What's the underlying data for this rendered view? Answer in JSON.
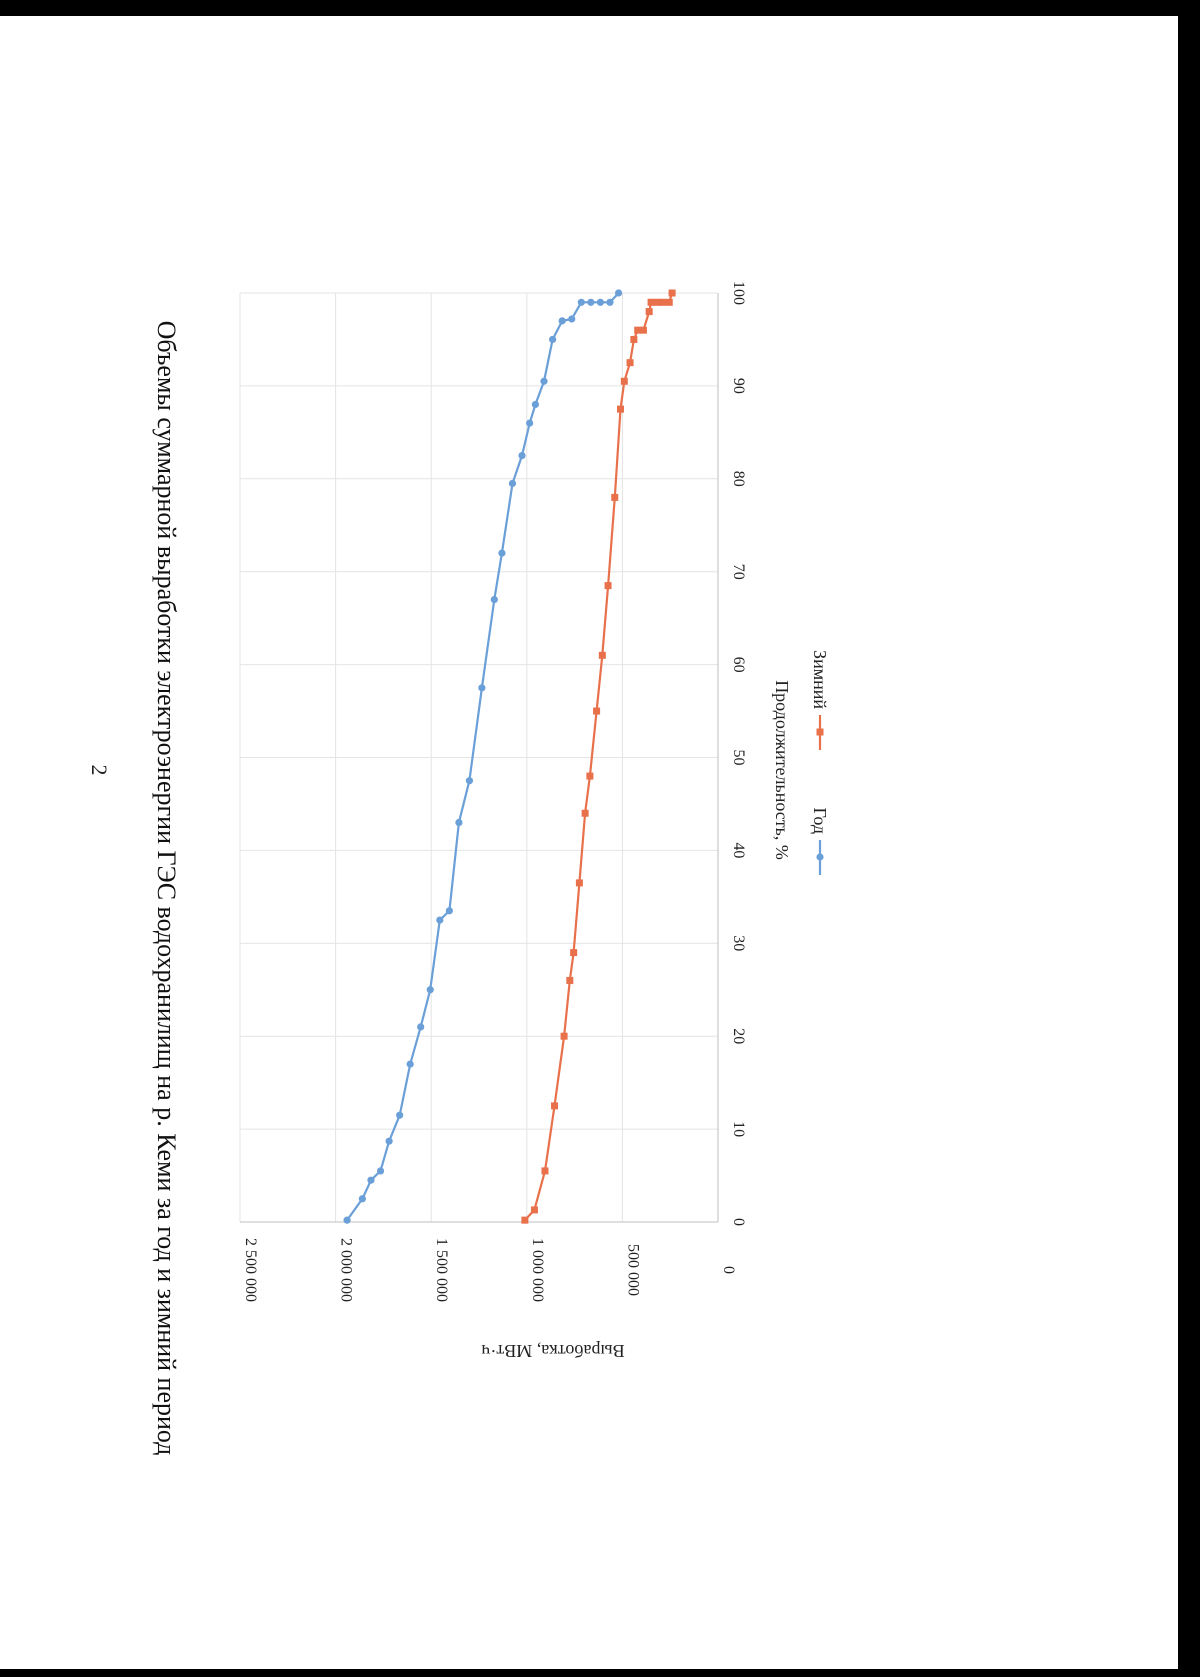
{
  "page": {
    "number": "2",
    "title": "Объемы суммарной выработки электроэнергии ГЭС водохранилищ на р. Кеми за год и зимний период"
  },
  "colors": {
    "year": "#6a9fd8",
    "winter": "#e8704a",
    "grid": "#e4e4e4",
    "axis": "#bfbfbf"
  },
  "chart_data": {
    "type": "line",
    "orientation": "rotated 90° clockwise on page",
    "xlabel": "Продолжительность, %",
    "ylabel": "Выработка, МВт·ч",
    "xlim": [
      0,
      100
    ],
    "ylim": [
      0,
      2500000
    ],
    "x_ticks": [
      "0",
      "10",
      "20",
      "30",
      "40",
      "50",
      "60",
      "70",
      "80",
      "90",
      "100"
    ],
    "y_ticks": [
      "0",
      "500 000",
      "1 000 000",
      "1 500 000",
      "2 000 000",
      "2 500 000"
    ],
    "grid": true,
    "legend_position": "bottom",
    "series": [
      {
        "name": "Год",
        "marker": "circle",
        "color": "#6a9fd8",
        "points": [
          [
            0.2,
            1940000
          ],
          [
            2.5,
            1860000
          ],
          [
            4.5,
            1815000
          ],
          [
            5.5,
            1765000
          ],
          [
            8.7,
            1720000
          ],
          [
            11.5,
            1665000
          ],
          [
            17,
            1610000
          ],
          [
            21,
            1555000
          ],
          [
            25,
            1505000
          ],
          [
            32.5,
            1455000
          ],
          [
            33.5,
            1405000
          ],
          [
            43,
            1355000
          ],
          [
            47.5,
            1300000
          ],
          [
            57.5,
            1235000
          ],
          [
            67,
            1170000
          ],
          [
            72,
            1130000
          ],
          [
            79.5,
            1075000
          ],
          [
            82.5,
            1025000
          ],
          [
            86,
            985000
          ],
          [
            88,
            955000
          ],
          [
            90.5,
            910000
          ],
          [
            95,
            865000
          ],
          [
            97,
            815000
          ],
          [
            97.2,
            765000
          ],
          [
            99,
            715000
          ],
          [
            99,
            665000
          ],
          [
            99,
            615000
          ],
          [
            99,
            565000
          ],
          [
            100,
            520000
          ]
        ]
      },
      {
        "name": "Зимний",
        "marker": "square",
        "color": "#e8704a",
        "points": [
          [
            0.2,
            1010000
          ],
          [
            1.3,
            960000
          ],
          [
            5.5,
            905000
          ],
          [
            12.5,
            855000
          ],
          [
            20,
            805000
          ],
          [
            26,
            775000
          ],
          [
            29,
            755000
          ],
          [
            36.5,
            725000
          ],
          [
            44,
            695000
          ],
          [
            48,
            670000
          ],
          [
            55,
            635000
          ],
          [
            61,
            605000
          ],
          [
            68.5,
            575000
          ],
          [
            78,
            540000
          ],
          [
            87.5,
            510000
          ],
          [
            90.5,
            490000
          ],
          [
            92.5,
            460000
          ],
          [
            95,
            440000
          ],
          [
            96,
            420000
          ],
          [
            96,
            390000
          ],
          [
            98,
            360000
          ],
          [
            99,
            350000
          ],
          [
            99,
            320000
          ],
          [
            99,
            290000
          ],
          [
            99,
            255000
          ],
          [
            100,
            240000
          ]
        ]
      }
    ]
  }
}
